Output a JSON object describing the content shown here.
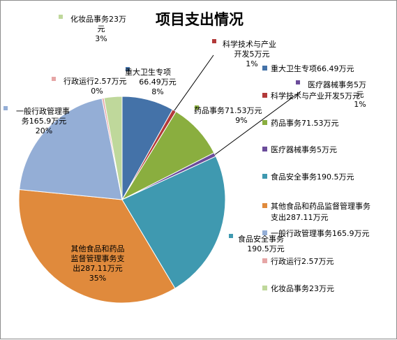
{
  "chart_data": {
    "type": "pie",
    "title": "项目支出情况",
    "series": [
      {
        "name": "重大卫生专项",
        "value": 66.49,
        "value_text": "66.49万元",
        "percent_text": "8%",
        "color": "#4472A8",
        "label_lines": [
          "重大卫生专项",
          "66.49万元"
        ],
        "legend_text": "重大卫生专项66.49万元"
      },
      {
        "name": "科学技术与产业开发",
        "value": 5,
        "value_text": "5万元",
        "percent_text": "1%",
        "color": "#B23A3A",
        "label_lines": [
          "科学技术与产业",
          "开发5万元"
        ],
        "legend_text": "科学技术与产业开发5万元"
      },
      {
        "name": "药品事务",
        "value": 71.53,
        "value_text": "71.53万元",
        "percent_text": "9%",
        "color": "#8AAE3F",
        "label_lines": [
          "药品事务71.53万元"
        ],
        "legend_text": "药品事务71.53万元"
      },
      {
        "name": "医疗器械事务",
        "value": 5,
        "value_text": "5万元",
        "percent_text": "1%",
        "color": "#6B4C9A",
        "label_lines": [
          "医疗器械事务5万",
          "元"
        ],
        "legend_text": "医疗器械事务5万元"
      },
      {
        "name": "食品安全事务",
        "value": 190.5,
        "value_text": "190.5万元",
        "percent_text": "",
        "color": "#3F99B0",
        "label_lines": [
          "食品安全事务",
          "190.5万元"
        ],
        "legend_text": "食品安全事务190.5万元"
      },
      {
        "name": "其他食品和药品监督管理事务支出",
        "value": 287.11,
        "value_text": "287.11万元",
        "percent_text": "35%",
        "color": "#E08A3C",
        "label_lines": [
          "其他食品和药品",
          "监督管理事务支",
          "出287.11万元"
        ],
        "legend_text": [
          "其他食品和药品监督管理事务",
          "支出287.11万元"
        ]
      },
      {
        "name": "一般行政管理事务",
        "value": 165.9,
        "value_text": "165.9万元",
        "percent_text": "20%",
        "color": "#94AED6",
        "label_lines": [
          "一般行政管理事",
          "务165.9万元"
        ],
        "legend_text": "一般行政管理事务165.9万元"
      },
      {
        "name": "行政运行",
        "value": 2.57,
        "value_text": "2.57万元",
        "percent_text": "0%",
        "color": "#E6A6A6",
        "label_lines": [
          "行政运行2.57万元"
        ],
        "legend_text": "行政运行2.57万元"
      },
      {
        "name": "化妆品事务",
        "value": 23,
        "value_text": "23万元",
        "percent_text": "3%",
        "color": "#BFD89B",
        "label_lines": [
          "化妆品事务23万",
          "元"
        ],
        "legend_text": "化妆品事务23万元"
      }
    ],
    "start_angle": "top",
    "direction": "clockwise",
    "legend_position": "right"
  }
}
